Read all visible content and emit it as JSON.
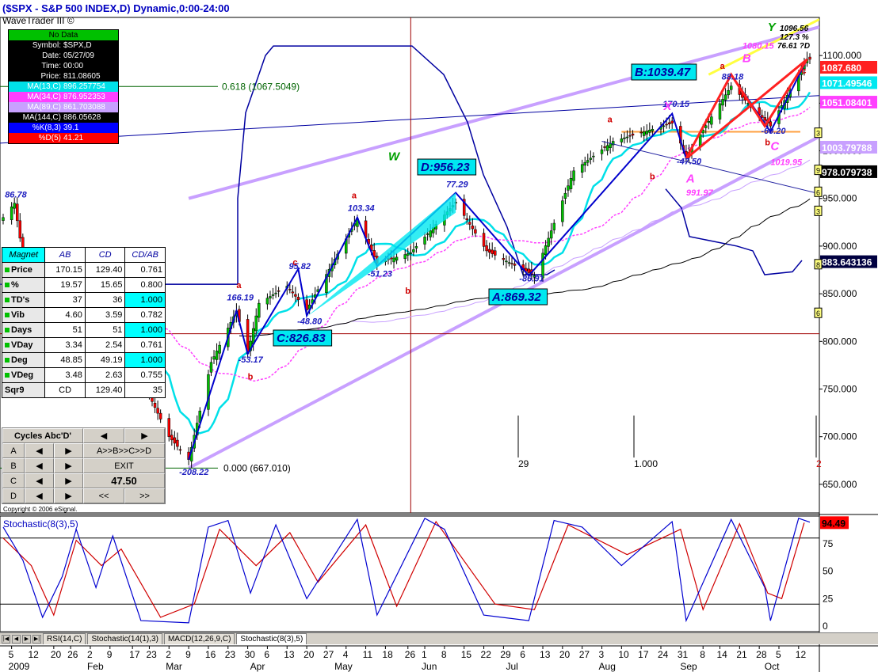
{
  "window": {
    "title": "($SPX - S&P 500 INDEX,D) Dynamic,0:00-24:00",
    "subtitle": "WaveTrader III ©",
    "copyright": "Copyright © 2006 eSignal."
  },
  "info_panel": {
    "status": "No Data",
    "rows": [
      {
        "label": "Symbol:",
        "value": "$SPX,D",
        "color": "#ffffff",
        "bg": "#000000"
      },
      {
        "label": "Date:",
        "value": "05/27/09",
        "color": "#ffffff",
        "bg": "#000000"
      },
      {
        "label": "Time:",
        "value": "00:00",
        "color": "#ffffff",
        "bg": "#000000"
      },
      {
        "label": "Price:",
        "value": "811.08605",
        "color": "#ffffff",
        "bg": "#000000"
      },
      {
        "label": "MA(13,C)",
        "value": "896.257754",
        "color": "#ffffff",
        "bg": "#00e0e8"
      },
      {
        "label": "MA(34,C)",
        "value": "876.952353",
        "color": "#ffffff",
        "bg": "#ff40ff"
      },
      {
        "label": "MA(89,C)",
        "value": "861.703088",
        "color": "#ffffff",
        "bg": "#c8a0ff"
      },
      {
        "label": "MA(144,C)",
        "value": "886.05628",
        "color": "#ffffff",
        "bg": "#000000"
      },
      {
        "label": "%K(8,3)",
        "value": "39.1",
        "color": "#ffffff",
        "bg": "#0000ff"
      },
      {
        "label": "%D(5)",
        "value": "41.21",
        "color": "#ffffff",
        "bg": "#ff0000"
      }
    ]
  },
  "magnet_table": {
    "headers": [
      "Magnet",
      "AB",
      "CD",
      "CD/AB"
    ],
    "rows": [
      {
        "label": "Price",
        "ab": "170.15",
        "cd": "129.40",
        "ratio": "0.761",
        "hl": false
      },
      {
        "label": "%",
        "ab": "19.57",
        "cd": "15.65",
        "ratio": "0.800",
        "hl": false
      },
      {
        "label": "TD's",
        "ab": "37",
        "cd": "36",
        "ratio": "1.000",
        "hl": true
      },
      {
        "label": "Vib",
        "ab": "4.60",
        "cd": "3.59",
        "ratio": "0.782",
        "hl": false
      },
      {
        "label": "Days",
        "ab": "51",
        "cd": "51",
        "ratio": "1.000",
        "hl": true
      },
      {
        "label": "VDay",
        "ab": "3.34",
        "cd": "2.54",
        "ratio": "0.761",
        "hl": false
      },
      {
        "label": "Deg",
        "ab": "48.85",
        "cd": "49.19",
        "ratio": "1.000",
        "hl": true
      },
      {
        "label": "VDeg",
        "ab": "3.48",
        "cd": "2.63",
        "ratio": "0.755",
        "hl": false
      },
      {
        "label": "Sqr9",
        "ab": "CD",
        "cd": "129.40",
        "ratio": "35",
        "hl": false
      }
    ]
  },
  "cycles_panel": {
    "title": "Cycles Abc'D'",
    "row_letters": [
      "A",
      "B",
      "C",
      "D"
    ],
    "abcd_button": "A>>B>>C>>D",
    "exit_button": "EXIT",
    "value": "47.50",
    "prev_button": "<<",
    "next_button": ">>"
  },
  "chart_data": {
    "type": "candlestick",
    "symbol": "$SPX",
    "ylim": [
      620,
      1140
    ],
    "yticks": [
      650,
      700,
      750,
      800,
      850,
      900,
      950,
      1000,
      1050,
      1100
    ],
    "ytick_labels": [
      "650.000",
      "700.000",
      "750.000",
      "800.000",
      "850.000",
      "900.000",
      "950.000",
      "1000.000",
      "1050.000",
      "1100.000"
    ],
    "x_range": [
      "2009-01-02",
      "2009-10-16"
    ],
    "price_path": [
      {
        "date": "2009-01-02",
        "close": 930
      },
      {
        "date": "2009-01-06",
        "close": 945
      },
      {
        "date": "2009-01-09",
        "close": 890
      },
      {
        "date": "2009-01-14",
        "close": 842
      },
      {
        "date": "2009-01-20",
        "close": 805
      },
      {
        "date": "2009-01-23",
        "close": 832
      },
      {
        "date": "2009-01-28",
        "close": 872
      },
      {
        "date": "2009-02-02",
        "close": 825
      },
      {
        "date": "2009-02-09",
        "close": 870
      },
      {
        "date": "2009-02-17",
        "close": 789
      },
      {
        "date": "2009-02-23",
        "close": 743
      },
      {
        "date": "2009-03-02",
        "close": 700
      },
      {
        "date": "2009-03-09",
        "close": 676
      },
      {
        "date": "2009-03-17",
        "close": 778
      },
      {
        "date": "2009-03-26",
        "close": 832
      },
      {
        "date": "2009-03-30",
        "close": 787
      },
      {
        "date": "2009-04-03",
        "close": 840
      },
      {
        "date": "2009-04-13",
        "close": 858
      },
      {
        "date": "2009-04-20",
        "close": 833
      },
      {
        "date": "2009-05-08",
        "close": 929
      },
      {
        "date": "2009-05-15",
        "close": 882
      },
      {
        "date": "2009-05-27",
        "close": 893
      },
      {
        "date": "2009-06-12",
        "close": 946
      },
      {
        "date": "2009-06-23",
        "close": 895
      },
      {
        "date": "2009-07-10",
        "close": 869
      },
      {
        "date": "2009-07-24",
        "close": 979
      },
      {
        "date": "2009-08-07",
        "close": 1010
      },
      {
        "date": "2009-08-28",
        "close": 1029
      },
      {
        "date": "2009-09-02",
        "close": 994
      },
      {
        "date": "2009-09-18",
        "close": 1068
      },
      {
        "date": "2009-10-02",
        "close": 1026
      },
      {
        "date": "2009-10-15",
        "close": 1096
      }
    ],
    "harmonic_points": [
      {
        "label": "A:869.32",
        "date": "2009-07-08",
        "price": 869.32
      },
      {
        "label": "B:1039.47",
        "date": "2009-08-28",
        "price": 1039.47
      },
      {
        "label": "C:826.83",
        "date": "2009-04-20",
        "price": 826.83
      },
      {
        "label": "D:956.23",
        "date": "2009-06-12",
        "price": 956.23
      }
    ],
    "swing_labels": [
      {
        "text": "86.78",
        "date": "2009-01-06",
        "price": 951
      },
      {
        "text": "-208.22",
        "date": "2009-03-09",
        "price": 660
      },
      {
        "text": "166.19",
        "date": "2009-03-26",
        "price": 843
      },
      {
        "text": "-53.17",
        "date": "2009-03-30",
        "price": 778
      },
      {
        "text": "95.82",
        "date": "2009-04-17",
        "price": 876
      },
      {
        "text": "-48.80",
        "date": "2009-04-20",
        "price": 818
      },
      {
        "text": "103.34",
        "date": "2009-05-08",
        "price": 937
      },
      {
        "text": "-51.23",
        "date": "2009-05-15",
        "price": 868
      },
      {
        "text": "77.29",
        "date": "2009-06-12",
        "price": 962
      },
      {
        "text": "-86.91",
        "date": "2009-07-08",
        "price": 863
      },
      {
        "text": "170.15",
        "date": "2009-08-28",
        "price": 1046
      },
      {
        "text": "-47.50",
        "date": "2009-09-02",
        "price": 986
      },
      {
        "text": "88.18",
        "date": "2009-09-18",
        "price": 1075
      },
      {
        "text": "-60.20",
        "date": "2009-10-02",
        "price": 1018
      }
    ],
    "wave_letters": [
      {
        "text": "a",
        "date": "2009-03-26",
        "price": 856
      },
      {
        "text": "b",
        "date": "2009-03-30",
        "price": 760
      },
      {
        "text": "c",
        "date": "2009-04-15",
        "price": 880
      },
      {
        "text": "a",
        "date": "2009-05-06",
        "price": 950
      },
      {
        "text": "b",
        "date": "2009-05-25",
        "price": 850
      },
      {
        "text": "a",
        "date": "2009-08-05",
        "price": 1030
      },
      {
        "text": "b",
        "date": "2009-08-20",
        "price": 970
      },
      {
        "text": "a",
        "date": "2009-09-14",
        "price": 1086
      },
      {
        "text": "b",
        "date": "2009-09-30",
        "price": 1006
      },
      {
        "text": "c",
        "date": "2009-10-13",
        "price": 1081
      }
    ],
    "pattern_labels": [
      {
        "text": "W",
        "date": "2009-05-19",
        "price": 990,
        "color": "#00a000"
      },
      {
        "text": "Y",
        "date": "2009-10-01",
        "price": 1126,
        "color": "#00a000"
      },
      {
        "text": "X",
        "date": "2009-08-25",
        "price": 1043,
        "color": "#ff40ff"
      },
      {
        "text": "A",
        "date": "2009-09-02",
        "price": 967,
        "color": "#ff40ff"
      },
      {
        "text": "B",
        "date": "2009-09-22",
        "price": 1093,
        "color": "#ff40ff"
      },
      {
        "text": "C",
        "date": "2009-10-02",
        "price": 1001,
        "color": "#ff40ff"
      },
      {
        "text": "1080.15",
        "date": "2009-09-22",
        "price": 1107,
        "color": "#ff40ff"
      },
      {
        "text": "1019.95",
        "date": "2009-10-02",
        "price": 985,
        "color": "#ff40ff"
      },
      {
        "text": "991.97",
        "date": "2009-09-02",
        "price": 953,
        "color": "#ff40ff"
      }
    ],
    "top_right_labels": [
      "1096.56",
      "127.3 %",
      "76.61 ?D"
    ],
    "fib_levels": [
      {
        "text": "0.618 (1067.5049)",
        "price": 1067.5
      },
      {
        "text": "0.000 (667.010)",
        "price": 667.0
      }
    ],
    "cycle_markers": [
      "29",
      "1.000",
      "2"
    ],
    "price_tags": [
      {
        "text": "1087.680",
        "price": 1087.68,
        "bg": "#ff2020",
        "fg": "#ffffff"
      },
      {
        "text": "1071.49546",
        "price": 1071.5,
        "bg": "#00e8f0",
        "fg": "#ffffff"
      },
      {
        "text": "1051.08401",
        "price": 1051.08,
        "bg": "#ff40ff",
        "fg": "#ffffff"
      },
      {
        "text": "1003.79788",
        "price": 1003.8,
        "bg": "#c8a0ff",
        "fg": "#ffffff"
      },
      {
        "text": "978.079738",
        "price": 978.08,
        "bg": "#000000",
        "fg": "#ffffff"
      },
      {
        "text": "883.643136",
        "price": 883.64,
        "bg": "#000040",
        "fg": "#ffffff"
      }
    ],
    "right_markers": [
      {
        "text": "3",
        "price": 1019
      },
      {
        "text": "9",
        "price": 980
      },
      {
        "text": "6",
        "price": 957
      },
      {
        "text": "3",
        "price": 937
      },
      {
        "text": "8",
        "price": 881
      },
      {
        "text": "6",
        "price": 830
      }
    ],
    "x_tick_labels": [
      {
        "text": "5",
        "date": "2009-01-05"
      },
      {
        "text": "12",
        "date": "2009-01-12"
      },
      {
        "text": "20",
        "date": "2009-01-20"
      },
      {
        "text": "26",
        "date": "2009-01-26"
      },
      {
        "text": "2",
        "date": "2009-02-02"
      },
      {
        "text": "9",
        "date": "2009-02-09"
      },
      {
        "text": "17",
        "date": "2009-02-17"
      },
      {
        "text": "23",
        "date": "2009-02-23"
      },
      {
        "text": "2",
        "date": "2009-03-02"
      },
      {
        "text": "9",
        "date": "2009-03-09"
      },
      {
        "text": "16",
        "date": "2009-03-16"
      },
      {
        "text": "23",
        "date": "2009-03-23"
      },
      {
        "text": "30",
        "date": "2009-03-30"
      },
      {
        "text": "6",
        "date": "2009-04-06"
      },
      {
        "text": "13",
        "date": "2009-04-13"
      },
      {
        "text": "20",
        "date": "2009-04-20"
      },
      {
        "text": "27",
        "date": "2009-04-27"
      },
      {
        "text": "4",
        "date": "2009-05-04"
      },
      {
        "text": "11",
        "date": "2009-05-11"
      },
      {
        "text": "18",
        "date": "2009-05-18"
      },
      {
        "text": "26",
        "date": "2009-05-26"
      },
      {
        "text": "1",
        "date": "2009-06-01"
      },
      {
        "text": "8",
        "date": "2009-06-08"
      },
      {
        "text": "15",
        "date": "2009-06-15"
      },
      {
        "text": "22",
        "date": "2009-06-22"
      },
      {
        "text": "29",
        "date": "2009-06-29"
      },
      {
        "text": "6",
        "date": "2009-07-06"
      },
      {
        "text": "13",
        "date": "2009-07-13"
      },
      {
        "text": "20",
        "date": "2009-07-20"
      },
      {
        "text": "27",
        "date": "2009-07-27"
      },
      {
        "text": "3",
        "date": "2009-08-03"
      },
      {
        "text": "10",
        "date": "2009-08-10"
      },
      {
        "text": "17",
        "date": "2009-08-17"
      },
      {
        "text": "24",
        "date": "2009-08-24"
      },
      {
        "text": "31",
        "date": "2009-08-31"
      },
      {
        "text": "8",
        "date": "2009-09-08"
      },
      {
        "text": "14",
        "date": "2009-09-14"
      },
      {
        "text": "21",
        "date": "2009-09-21"
      },
      {
        "text": "28",
        "date": "2009-09-28"
      },
      {
        "text": "5",
        "date": "2009-10-05"
      },
      {
        "text": "12",
        "date": "2009-10-12"
      }
    ],
    "month_labels": [
      {
        "text": "2009",
        "date": "2009-01-05"
      },
      {
        "text": "Feb",
        "date": "2009-02-02"
      },
      {
        "text": "Mar",
        "date": "2009-03-02"
      },
      {
        "text": "Apr",
        "date": "2009-04-01"
      },
      {
        "text": "May",
        "date": "2009-05-01"
      },
      {
        "text": "Jun",
        "date": "2009-06-01"
      },
      {
        "text": "Jul",
        "date": "2009-07-01"
      },
      {
        "text": "Aug",
        "date": "2009-08-03"
      },
      {
        "text": "Sep",
        "date": "2009-09-01"
      },
      {
        "text": "Oct",
        "date": "2009-10-01"
      }
    ],
    "stochastic": {
      "title": "Stochastic(8(3),5)",
      "ylim": [
        -5,
        100
      ],
      "yticks": [
        0,
        25,
        50,
        75
      ],
      "ytick_labels": [
        "0",
        "25",
        "50",
        "75"
      ],
      "reference_lines": [
        20,
        80
      ],
      "last_value": "94.49",
      "k": [
        {
          "date": "2009-01-02",
          "value": 90
        },
        {
          "date": "2009-01-09",
          "value": 60
        },
        {
          "date": "2009-01-16",
          "value": 8
        },
        {
          "date": "2009-01-23",
          "value": 45
        },
        {
          "date": "2009-01-28",
          "value": 88
        },
        {
          "date": "2009-02-04",
          "value": 35
        },
        {
          "date": "2009-02-10",
          "value": 82
        },
        {
          "date": "2009-02-20",
          "value": 5
        },
        {
          "date": "2009-03-09",
          "value": 3
        },
        {
          "date": "2009-03-16",
          "value": 90
        },
        {
          "date": "2009-03-23",
          "value": 96
        },
        {
          "date": "2009-03-31",
          "value": 30
        },
        {
          "date": "2009-04-09",
          "value": 92
        },
        {
          "date": "2009-04-20",
          "value": 25
        },
        {
          "date": "2009-05-08",
          "value": 97
        },
        {
          "date": "2009-05-15",
          "value": 10
        },
        {
          "date": "2009-06-01",
          "value": 98
        },
        {
          "date": "2009-06-08",
          "value": 88
        },
        {
          "date": "2009-06-22",
          "value": 10
        },
        {
          "date": "2009-07-08",
          "value": 5
        },
        {
          "date": "2009-07-17",
          "value": 96
        },
        {
          "date": "2009-07-27",
          "value": 90
        },
        {
          "date": "2009-08-10",
          "value": 55
        },
        {
          "date": "2009-08-28",
          "value": 95
        },
        {
          "date": "2009-09-02",
          "value": 5
        },
        {
          "date": "2009-09-18",
          "value": 97
        },
        {
          "date": "2009-09-30",
          "value": 35
        },
        {
          "date": "2009-10-02",
          "value": 5
        },
        {
          "date": "2009-10-12",
          "value": 98
        },
        {
          "date": "2009-10-16",
          "value": 94.49
        }
      ],
      "d": [
        {
          "date": "2009-01-02",
          "value": 80
        },
        {
          "date": "2009-01-12",
          "value": 55
        },
        {
          "date": "2009-01-20",
          "value": 10
        },
        {
          "date": "2009-01-28",
          "value": 78
        },
        {
          "date": "2009-02-06",
          "value": 55
        },
        {
          "date": "2009-02-13",
          "value": 70
        },
        {
          "date": "2009-02-27",
          "value": 8
        },
        {
          "date": "2009-03-11",
          "value": 20
        },
        {
          "date": "2009-03-20",
          "value": 88
        },
        {
          "date": "2009-04-02",
          "value": 55
        },
        {
          "date": "2009-04-14",
          "value": 85
        },
        {
          "date": "2009-04-24",
          "value": 40
        },
        {
          "date": "2009-05-11",
          "value": 92
        },
        {
          "date": "2009-05-22",
          "value": 18
        },
        {
          "date": "2009-06-05",
          "value": 95
        },
        {
          "date": "2009-06-26",
          "value": 20
        },
        {
          "date": "2009-07-10",
          "value": 15
        },
        {
          "date": "2009-07-22",
          "value": 92
        },
        {
          "date": "2009-08-12",
          "value": 65
        },
        {
          "date": "2009-08-31",
          "value": 88
        },
        {
          "date": "2009-09-08",
          "value": 15
        },
        {
          "date": "2009-09-21",
          "value": 93
        },
        {
          "date": "2009-10-01",
          "value": 30
        },
        {
          "date": "2009-10-06",
          "value": 25
        },
        {
          "date": "2009-10-14",
          "value": 94
        }
      ]
    }
  },
  "tabs": {
    "items": [
      "RSI(14,C)",
      "Stochastic(14(1),3)",
      "MACD(12,26,9,C)",
      "Stochastic(8(3),5)"
    ],
    "active": 3
  },
  "colors": {
    "up_candle": "#00c000",
    "down_candle": "#ff0000",
    "harmonic_box": "#00e8f0",
    "harmonic_text": "#0000a0",
    "blue_pattern": "#0000cc",
    "red_pattern": "#ff2020",
    "trend_purple": "#c8a0ff",
    "fib_green": "#006400"
  }
}
